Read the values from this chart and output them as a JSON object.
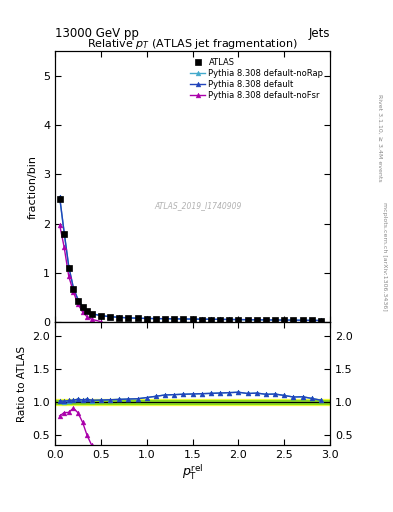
{
  "title_top_left": "13000 GeV pp",
  "title_top_right": "Jets",
  "plot_title": "Relative $p_T$ (ATLAS jet fragmentation)",
  "ylabel_main": "fraction/bin",
  "ylabel_ratio": "Ratio to ATLAS",
  "watermark": "ATLAS_2019_I1740909",
  "right_label_top": "Rivet 3.1.10, ≥ 3.4M events",
  "right_label_bottom": "mcplots.cern.ch [arXiv:1306.3436]",
  "main_xlim": [
    0,
    3.0
  ],
  "main_ylim": [
    0.0,
    5.5
  ],
  "ratio_ylim": [
    0.35,
    2.2
  ],
  "main_yticks": [
    0,
    1,
    2,
    3,
    4,
    5
  ],
  "ratio_yticks": [
    0.5,
    1.0,
    1.5,
    2.0
  ],
  "xticks": [
    0,
    0.5,
    1.0,
    1.5,
    2.0,
    2.5,
    3.0
  ],
  "atlas_x": [
    0.05,
    0.1,
    0.15,
    0.2,
    0.25,
    0.3,
    0.35,
    0.4,
    0.5,
    0.6,
    0.7,
    0.8,
    0.9,
    1.0,
    1.1,
    1.2,
    1.3,
    1.4,
    1.5,
    1.6,
    1.7,
    1.8,
    1.9,
    2.0,
    2.1,
    2.2,
    2.3,
    2.4,
    2.5,
    2.6,
    2.7,
    2.8,
    2.9
  ],
  "atlas_y": [
    2.5,
    1.8,
    1.1,
    0.68,
    0.44,
    0.3,
    0.22,
    0.17,
    0.13,
    0.11,
    0.095,
    0.085,
    0.078,
    0.072,
    0.068,
    0.065,
    0.062,
    0.059,
    0.057,
    0.055,
    0.053,
    0.051,
    0.049,
    0.047,
    0.046,
    0.044,
    0.043,
    0.041,
    0.04,
    0.039,
    0.037,
    0.036,
    0.035
  ],
  "pythia_default_x": [
    0.05,
    0.1,
    0.15,
    0.2,
    0.25,
    0.3,
    0.35,
    0.4,
    0.5,
    0.6,
    0.7,
    0.8,
    0.9,
    1.0,
    1.1,
    1.2,
    1.3,
    1.4,
    1.5,
    1.6,
    1.7,
    1.8,
    1.9,
    2.0,
    2.1,
    2.2,
    2.3,
    2.4,
    2.5,
    2.6,
    2.7,
    2.8,
    2.9
  ],
  "pythia_default_y": [
    2.55,
    1.82,
    1.13,
    0.7,
    0.46,
    0.31,
    0.23,
    0.175,
    0.134,
    0.114,
    0.099,
    0.089,
    0.082,
    0.077,
    0.074,
    0.072,
    0.069,
    0.066,
    0.064,
    0.062,
    0.06,
    0.058,
    0.056,
    0.054,
    0.052,
    0.05,
    0.048,
    0.046,
    0.044,
    0.042,
    0.04,
    0.038,
    0.036
  ],
  "pythia_nofsr_x": [
    0.05,
    0.1,
    0.15,
    0.2,
    0.25,
    0.3,
    0.35,
    0.4,
    0.5
  ],
  "pythia_nofsr_y": [
    1.98,
    1.52,
    0.93,
    0.62,
    0.37,
    0.21,
    0.11,
    0.06,
    0.012
  ],
  "pythia_norap_x": [
    0.05,
    0.1,
    0.15,
    0.2,
    0.25,
    0.3,
    0.35,
    0.4,
    0.5,
    0.6,
    0.7,
    0.8,
    0.9,
    1.0,
    1.1,
    1.2,
    1.3,
    1.4,
    1.5,
    1.6,
    1.7,
    1.8,
    1.9,
    2.0,
    2.1,
    2.2,
    2.3,
    2.4,
    2.5,
    2.6,
    2.7,
    2.8,
    2.9
  ],
  "pythia_norap_y": [
    2.54,
    1.81,
    1.12,
    0.7,
    0.46,
    0.31,
    0.23,
    0.174,
    0.134,
    0.114,
    0.099,
    0.089,
    0.082,
    0.077,
    0.074,
    0.072,
    0.069,
    0.066,
    0.064,
    0.062,
    0.06,
    0.058,
    0.056,
    0.054,
    0.052,
    0.05,
    0.048,
    0.046,
    0.044,
    0.042,
    0.04,
    0.038,
    0.036
  ],
  "ratio_default_y": [
    1.02,
    1.012,
    1.027,
    1.029,
    1.045,
    1.033,
    1.045,
    1.029,
    1.031,
    1.036,
    1.042,
    1.047,
    1.051,
    1.069,
    1.088,
    1.108,
    1.113,
    1.119,
    1.123,
    1.127,
    1.132,
    1.137,
    1.143,
    1.149,
    1.13,
    1.136,
    1.118,
    1.122,
    1.1,
    1.077,
    1.081,
    1.056,
    1.029
  ],
  "ratio_nofsr_y": [
    0.792,
    0.844,
    0.845,
    0.912,
    0.841,
    0.7,
    0.5,
    0.353,
    0.092
  ],
  "ratio_norap_y": [
    1.016,
    1.006,
    1.018,
    1.029,
    1.045,
    1.033,
    1.045,
    1.024,
    1.031,
    1.036,
    1.042,
    1.047,
    1.051,
    1.069,
    1.088,
    1.108,
    1.113,
    1.119,
    1.123,
    1.127,
    1.132,
    1.137,
    1.143,
    1.149,
    1.13,
    1.136,
    1.118,
    1.122,
    1.1,
    1.077,
    1.081,
    1.056,
    1.029
  ],
  "color_atlas": "#000000",
  "color_default": "#2244bb",
  "color_nofsr": "#aa00aa",
  "color_norap": "#44aacc",
  "band_yellow": "#ffff00",
  "band_green": "#55cc00",
  "band_yellow_lo": 0.95,
  "band_yellow_hi": 1.05,
  "band_green_lo": 0.97,
  "band_green_hi": 1.03
}
